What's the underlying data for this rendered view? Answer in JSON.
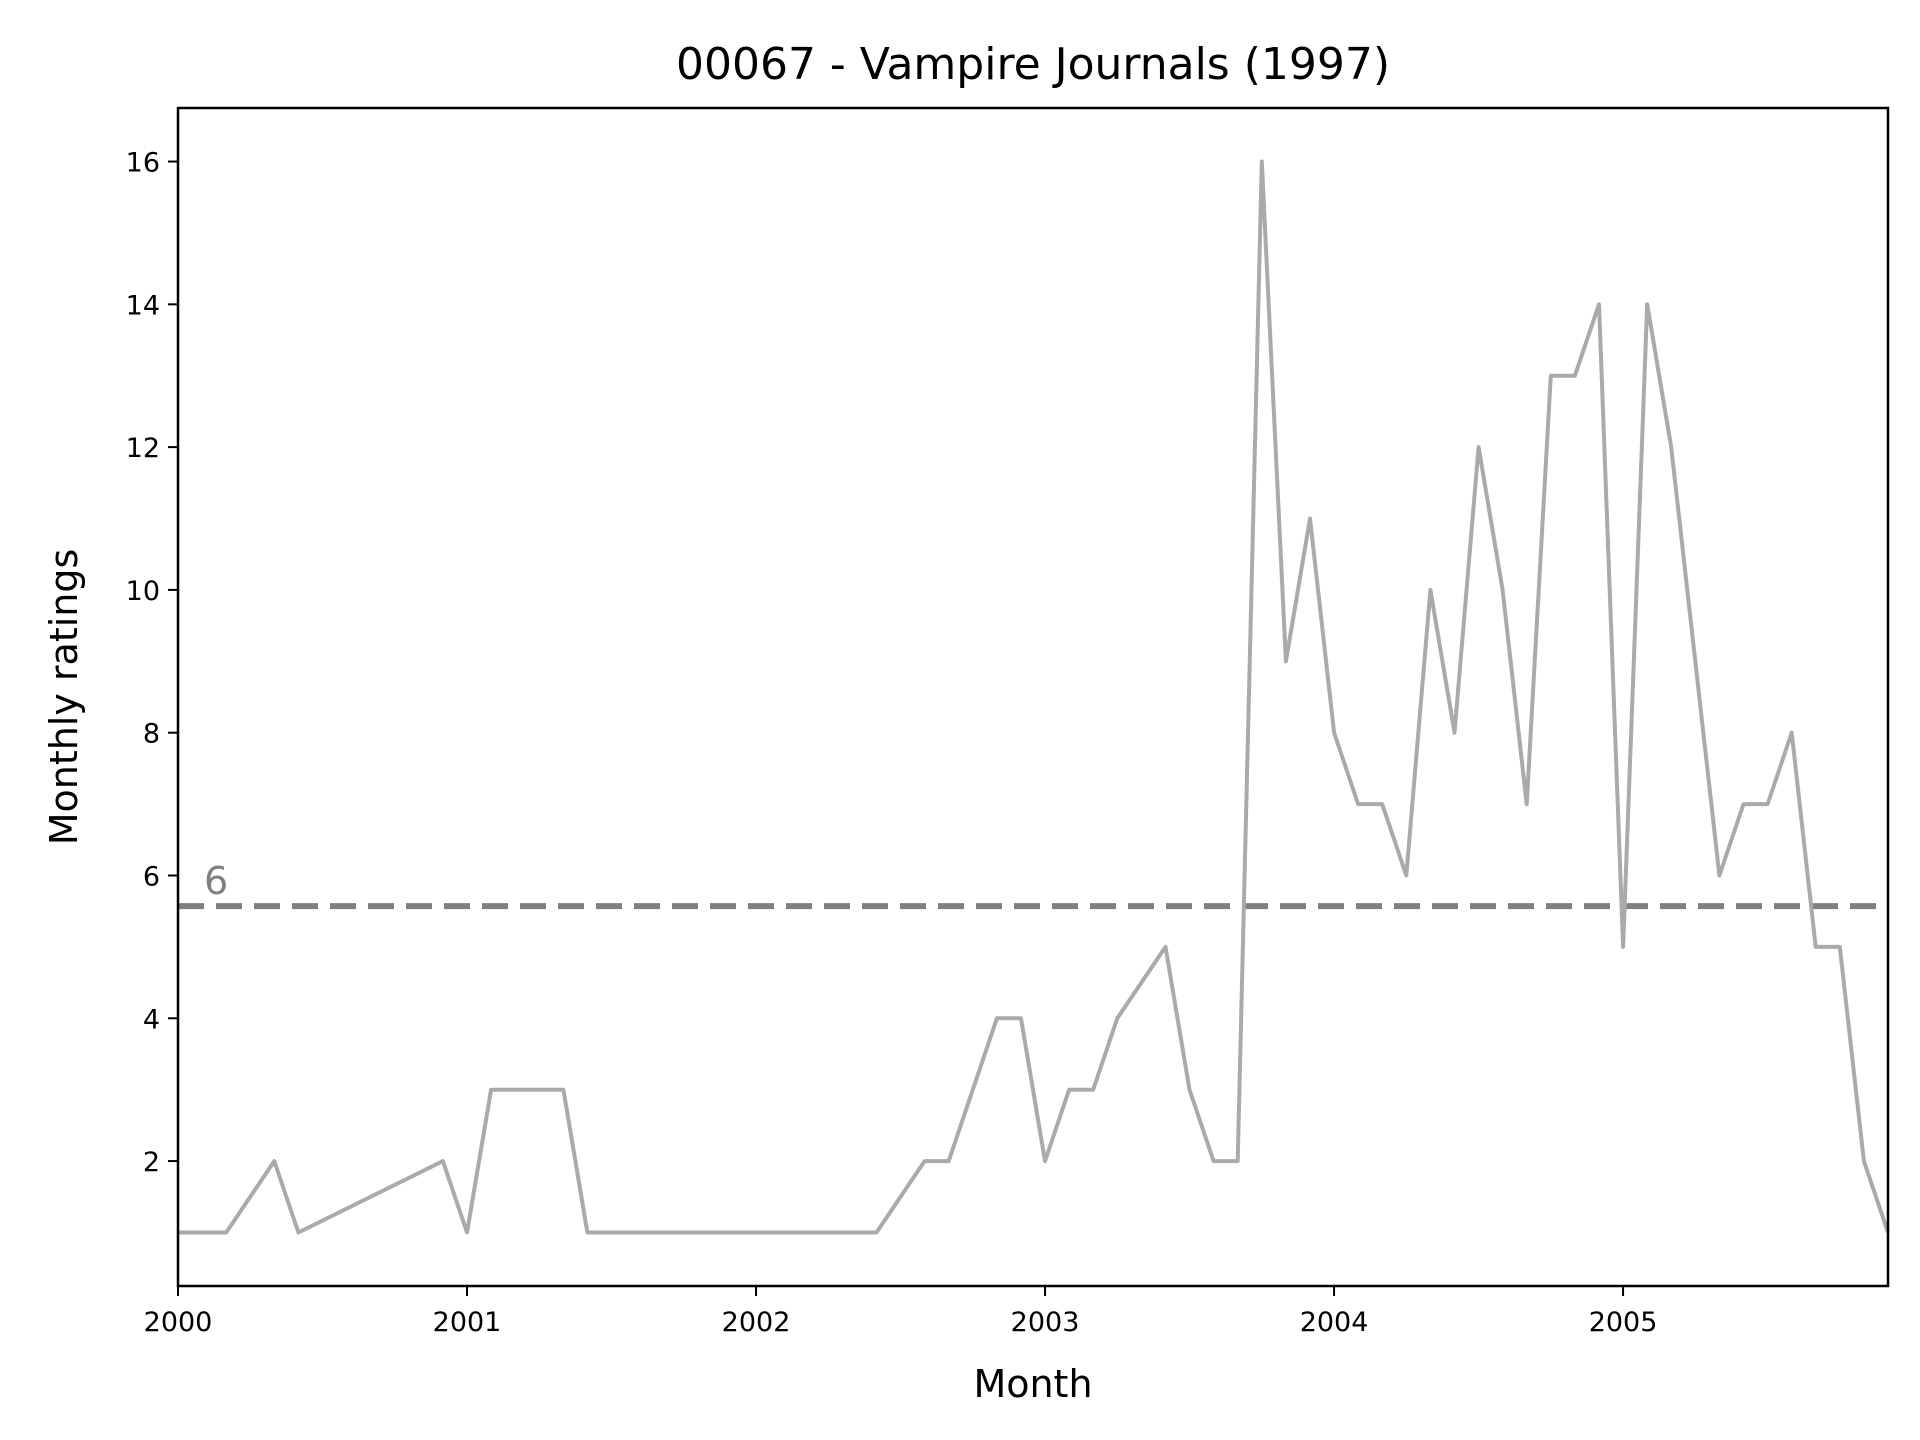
{
  "chart_data": {
    "type": "line",
    "title": "00067 - Vampire Journals (1997)",
    "xlabel": "Month",
    "ylabel": "Monthly ratings",
    "xlim": [
      "2000-01",
      "2005-12"
    ],
    "ylim": [
      0.25,
      16.75
    ],
    "x_ticks": [
      "2000",
      "2001",
      "2002",
      "2003",
      "2004",
      "2005"
    ],
    "y_ticks": [
      "2",
      "4",
      "6",
      "8",
      "10",
      "12",
      "14",
      "16"
    ],
    "grid": false,
    "line_color": "#aaaaaa",
    "x": [
      "2000-01",
      "2000-03",
      "2000-05",
      "2000-06",
      "2000-12",
      "2001-01",
      "2001-02",
      "2001-05",
      "2001-06",
      "2002-06",
      "2002-08",
      "2002-09",
      "2002-11",
      "2002-12",
      "2003-01",
      "2003-02",
      "2003-03",
      "2003-04",
      "2003-06",
      "2003-07",
      "2003-08",
      "2003-09",
      "2003-10",
      "2003-11",
      "2003-12",
      "2004-01",
      "2004-02",
      "2004-03",
      "2004-04",
      "2004-05",
      "2004-06",
      "2004-07",
      "2004-08",
      "2004-09",
      "2004-10",
      "2004-11",
      "2004-12",
      "2005-01",
      "2005-02",
      "2005-03",
      "2005-05",
      "2005-06",
      "2005-07",
      "2005-08",
      "2005-09",
      "2005-10",
      "2005-11",
      "2005-12"
    ],
    "values": [
      1,
      1,
      2,
      1,
      2,
      1,
      3,
      3,
      1,
      1,
      2,
      2,
      4,
      4,
      2,
      3,
      3,
      4,
      5,
      3,
      2,
      2,
      16,
      9,
      11,
      8,
      7,
      7,
      6,
      10,
      8,
      12,
      10,
      7,
      13,
      13,
      14,
      5,
      14,
      12,
      6,
      7,
      7,
      8,
      5,
      5,
      2,
      1
    ],
    "reference_line": {
      "value": 5.57,
      "label": "6",
      "color": "#808080",
      "style": "dashed"
    }
  }
}
